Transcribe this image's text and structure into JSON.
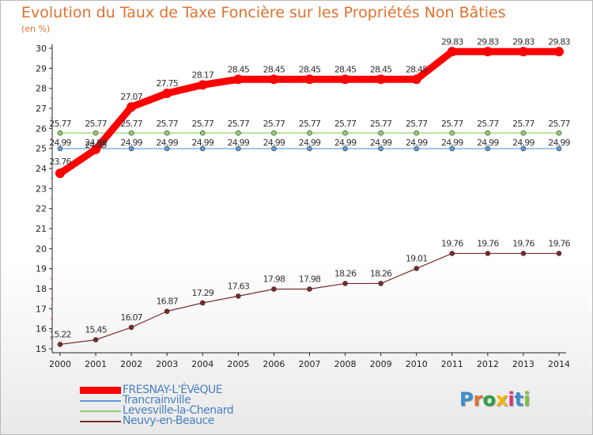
{
  "header": {
    "title": "Evolution du Taux de Taxe Foncière sur les Propriétés Non Bâties",
    "unit": "(en %)"
  },
  "logo": {
    "text": "Proxiti",
    "colors": [
      "#3a8fd0",
      "#e0712c",
      "#2f9e44",
      "#f2b705",
      "#d9376e",
      "#3a8fd0",
      "#7fbf3f"
    ]
  },
  "chart_data": {
    "type": "line",
    "x": [
      "2000",
      "2001",
      "2002",
      "2003",
      "2004",
      "2005",
      "2006",
      "2007",
      "2008",
      "2009",
      "2010",
      "2011",
      "2012",
      "2013",
      "2014"
    ],
    "ylim": [
      15,
      30
    ],
    "yticks": [
      15,
      16,
      17,
      18,
      19,
      20,
      21,
      22,
      23,
      24,
      25,
      26,
      27,
      28,
      29,
      30
    ],
    "grid": false,
    "legend_position": "bottom-left",
    "series": [
      {
        "name": "FRESNAY-L'ÉVêQUE",
        "color": "#ff0000",
        "stroke": "thick",
        "values": [
          23.76,
          24.95,
          27.07,
          27.75,
          28.17,
          28.45,
          28.45,
          28.45,
          28.45,
          28.45,
          28.45,
          29.83,
          29.83,
          29.83,
          29.83
        ],
        "labels": [
          "23.76",
          "24.95",
          "27.07",
          "27.75",
          "28.17",
          "28.45",
          "28.45",
          "28.45",
          "28.45",
          "28.45",
          "28.45",
          "29.83",
          "29.83",
          "29.83",
          "29.83"
        ]
      },
      {
        "name": "Trancrainville",
        "color": "#5b9bd5",
        "stroke": "thin",
        "values": [
          24.99,
          24.99,
          24.99,
          24.99,
          24.99,
          24.99,
          24.99,
          24.99,
          24.99,
          24.99,
          24.99,
          24.99,
          24.99,
          24.99,
          24.99
        ],
        "labels": [
          "24.99",
          "24.99",
          "24.99",
          "24.99",
          "24.99",
          "24.99",
          "24.99",
          "24.99",
          "24.99",
          "24.99",
          "24.99",
          "24.99",
          "24.99",
          "24.99",
          "24.99"
        ]
      },
      {
        "name": "Levesville-la-Chenard",
        "color": "#8fd16a",
        "stroke": "thin",
        "values": [
          25.77,
          25.77,
          25.77,
          25.77,
          25.77,
          25.77,
          25.77,
          25.77,
          25.77,
          25.77,
          25.77,
          25.77,
          25.77,
          25.77,
          25.77
        ],
        "labels": [
          "25.77",
          "25.77",
          "25.77",
          "25.77",
          "25.77",
          "25.77",
          "25.77",
          "25.77",
          "25.77",
          "25.77",
          "25.77",
          "25.77",
          "25.77",
          "25.77",
          "25.77"
        ]
      },
      {
        "name": "Neuvy-en-Beauce",
        "color": "#7a2a2e",
        "stroke": "thin",
        "values": [
          15.22,
          15.45,
          16.07,
          16.87,
          17.29,
          17.63,
          17.98,
          17.98,
          18.26,
          18.26,
          19.01,
          19.76,
          19.76,
          19.76,
          19.76
        ],
        "labels": [
          "15.22",
          "15.45",
          "16.07",
          "16.87",
          "17.29",
          "17.63",
          "17.98",
          "17.98",
          "18.26",
          "18.26",
          "19.01",
          "19.76",
          "19.76",
          "19.76",
          "19.76"
        ]
      }
    ]
  }
}
